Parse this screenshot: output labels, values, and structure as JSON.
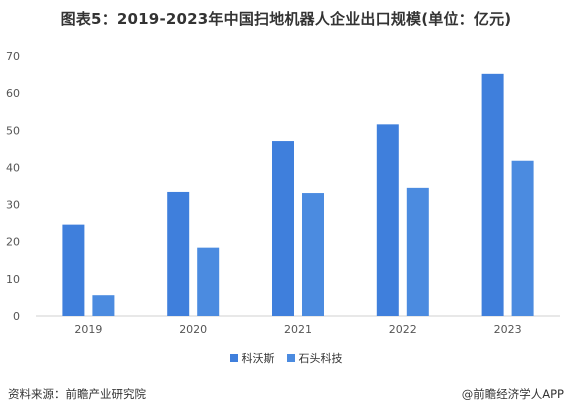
{
  "title": "图表5：2019-2023年中国扫地机器人企业出口规模(单位：亿元)",
  "colors": {
    "series1": "#3f7fdc",
    "series2": "#4b8be0",
    "axis": "#d0d0d0",
    "text": "#333333"
  },
  "chart_data": {
    "type": "bar",
    "title": "图表5：2019-2023年中国扫地机器人企业出口规模(单位：亿元)",
    "categories": [
      "2019",
      "2020",
      "2021",
      "2022",
      "2023"
    ],
    "series": [
      {
        "name": "科沃斯",
        "values": [
          24.6,
          33.4,
          47.1,
          51.6,
          65.2
        ]
      },
      {
        "name": "石头科技",
        "values": [
          5.6,
          18.4,
          33.1,
          34.5,
          41.8
        ]
      }
    ],
    "ylim": [
      0,
      70
    ],
    "yticks": [
      0,
      10,
      20,
      30,
      40,
      50,
      60,
      70
    ],
    "xlabel": "",
    "ylabel": "",
    "grid": false,
    "legend": "bottom-center"
  },
  "footer": {
    "source": "资料来源：前瞻产业研究院",
    "brand": "@前瞻经济学人APP"
  }
}
